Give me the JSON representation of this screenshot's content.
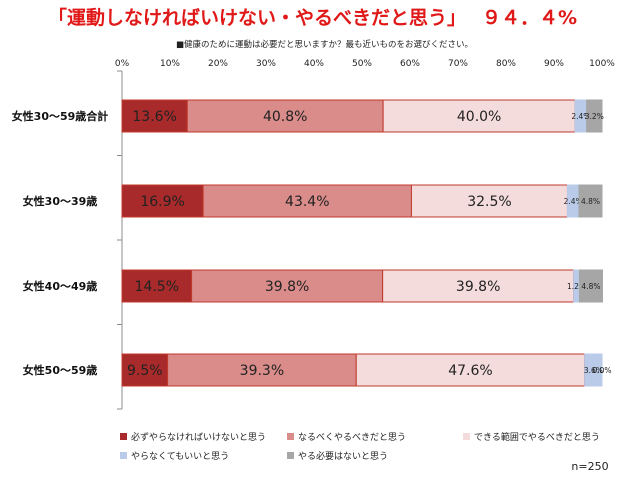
{
  "header": {
    "title": "「運動しなければいけない・やるべきだと思う」",
    "total": "９４．４%",
    "question": "■健康のために運動は必要だと思いますか？最も近いものをお選びください。",
    "sample": "n=250"
  },
  "chart_data": {
    "type": "bar",
    "orientation": "horizontal",
    "stacked": true,
    "percent_scale": true,
    "xlim": [
      0,
      100
    ],
    "x_ticks": [
      "0%",
      "10%",
      "20%",
      "30%",
      "40%",
      "50%",
      "60%",
      "70%",
      "80%",
      "90%",
      "100%"
    ],
    "categories": [
      "女性30～59歳合計",
      "女性30～39歳",
      "女性40～49歳",
      "女性50～59歳"
    ],
    "series": [
      {
        "name": "必ずやらなければいけないと思う",
        "color": "#a92a2a",
        "border": "#c0392b",
        "values": [
          13.6,
          16.9,
          14.5,
          9.5
        ],
        "labels": [
          "13.6%",
          "16.9%",
          "14.5%",
          "9.5%"
        ]
      },
      {
        "name": "なるべくやるべきだと思う",
        "color": "#d98c8a",
        "border": "#c0392b",
        "values": [
          40.8,
          43.4,
          39.8,
          39.3
        ],
        "labels": [
          "40.8%",
          "43.4%",
          "39.8%",
          "39.3%"
        ]
      },
      {
        "name": "できる範囲でやるべきだと思う",
        "color": "#f4dcdc",
        "border": "#c0392b",
        "values": [
          40.0,
          32.5,
          39.8,
          47.6
        ],
        "labels": [
          "40.0%",
          "32.5%",
          "39.8%",
          "47.6%"
        ]
      },
      {
        "name": "やらなくてもいいと思う",
        "color": "#b9cbe8",
        "border": "#b9cbe8",
        "values": [
          2.4,
          2.4,
          1.2,
          3.6
        ],
        "labels": [
          "2.4%",
          "2.4%",
          "1.2%",
          "3.6%"
        ]
      },
      {
        "name": "やる必要はないと思う",
        "color": "#a6a6a6",
        "border": "#a6a6a6",
        "values": [
          3.2,
          4.8,
          4.8,
          0.0
        ],
        "labels": [
          "3.2%",
          "4.8%",
          "4.8%",
          "0.0%"
        ]
      }
    ],
    "legend_position": "bottom"
  }
}
